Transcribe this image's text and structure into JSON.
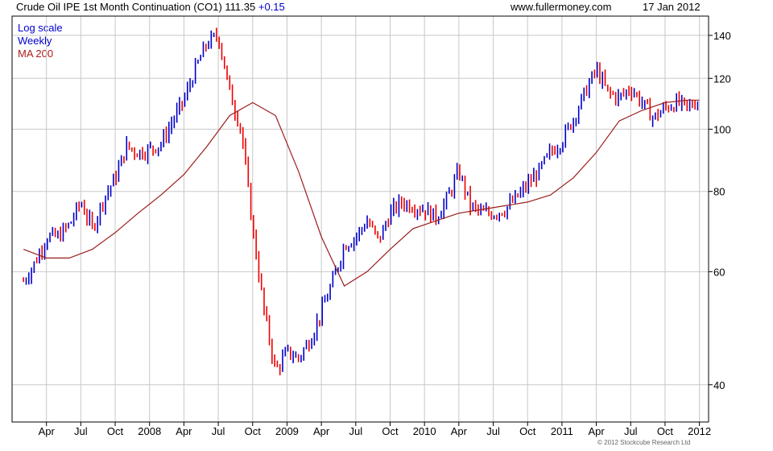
{
  "header": {
    "title": "Crude Oil IPE 1st Month Continuation (CO1)",
    "last": "111.35",
    "change": "+0.15",
    "site": "www.fullermoney.com",
    "date": "17 Jan 2012"
  },
  "legend": {
    "scale": "Log scale",
    "period": "Weekly",
    "ma": "MA 200"
  },
  "copyright": "© 2012 Stockcube Research Ltd",
  "colors": {
    "up": "#0000cc",
    "down": "#ee0000",
    "ma": "#9b1c1c",
    "grid": "#c8c8c8"
  },
  "chart_data": {
    "type": "candlestick",
    "y_scale": "log",
    "ylim": [
      35,
      150
    ],
    "y_ticks": [
      40,
      60,
      80,
      100,
      120,
      140
    ],
    "x_ticks": [
      "Apr",
      "Jul",
      "Oct",
      "2008",
      "Apr",
      "Jul",
      "Oct",
      "2009",
      "Apr",
      "Jul",
      "Oct",
      "2010",
      "Apr",
      "Jul",
      "Oct",
      "2011",
      "Apr",
      "Jul",
      "Oct",
      "2012"
    ],
    "grid": true,
    "series": [
      {
        "name": "CO1",
        "kind": "price",
        "x": [
          "2007-02",
          "2007-03",
          "2007-04",
          "2007-05",
          "2007-06",
          "2007-07",
          "2007-08",
          "2007-09",
          "2007-10",
          "2007-11",
          "2007-12",
          "2008-01",
          "2008-02",
          "2008-03",
          "2008-04",
          "2008-05",
          "2008-06",
          "2008-07",
          "2008-08",
          "2008-09",
          "2008-10",
          "2008-11",
          "2008-12",
          "2009-01",
          "2009-02",
          "2009-03",
          "2009-04",
          "2009-05",
          "2009-06",
          "2009-07",
          "2009-08",
          "2009-09",
          "2009-10",
          "2009-11",
          "2009-12",
          "2010-01",
          "2010-02",
          "2010-03",
          "2010-04",
          "2010-05",
          "2010-06",
          "2010-07",
          "2010-08",
          "2010-09",
          "2010-10",
          "2010-11",
          "2010-12",
          "2011-01",
          "2011-02",
          "2011-03",
          "2011-04",
          "2011-05",
          "2011-06",
          "2011-07",
          "2011-08",
          "2011-09",
          "2011-10",
          "2011-11",
          "2011-12",
          "2012-01"
        ],
        "y": [
          58,
          62,
          68,
          68,
          71,
          77,
          70,
          78,
          84,
          94,
          92,
          93,
          95,
          103,
          111,
          124,
          136,
          140,
          114,
          100,
          70,
          52,
          42,
          45,
          44,
          47,
          52,
          58,
          66,
          68,
          72,
          67,
          74,
          77,
          76,
          75,
          73,
          78,
          86,
          76,
          74,
          74,
          75,
          78,
          82,
          86,
          92,
          96,
          104,
          114,
          124,
          114,
          112,
          116,
          110,
          104,
          108,
          110,
          108,
          111.35
        ]
      },
      {
        "name": "MA 200",
        "kind": "moving-average",
        "x": [
          "2007-02",
          "2007-04",
          "2007-06",
          "2007-08",
          "2007-10",
          "2007-12",
          "2008-02",
          "2008-04",
          "2008-06",
          "2008-08",
          "2008-10",
          "2008-12",
          "2009-02",
          "2009-04",
          "2009-06",
          "2009-08",
          "2009-10",
          "2009-12",
          "2010-02",
          "2010-04",
          "2010-06",
          "2010-08",
          "2010-10",
          "2010-12",
          "2011-02",
          "2011-04",
          "2011-06",
          "2011-08",
          "2011-10",
          "2011-12",
          "2012-01"
        ],
        "y": [
          65,
          63,
          63,
          65,
          69,
          74,
          79,
          85,
          94,
          105,
          110,
          105,
          86,
          68,
          57,
          60,
          65,
          70,
          72,
          74,
          75,
          76,
          77,
          79,
          84,
          92,
          103,
          107,
          110,
          111,
          111
        ]
      }
    ]
  }
}
